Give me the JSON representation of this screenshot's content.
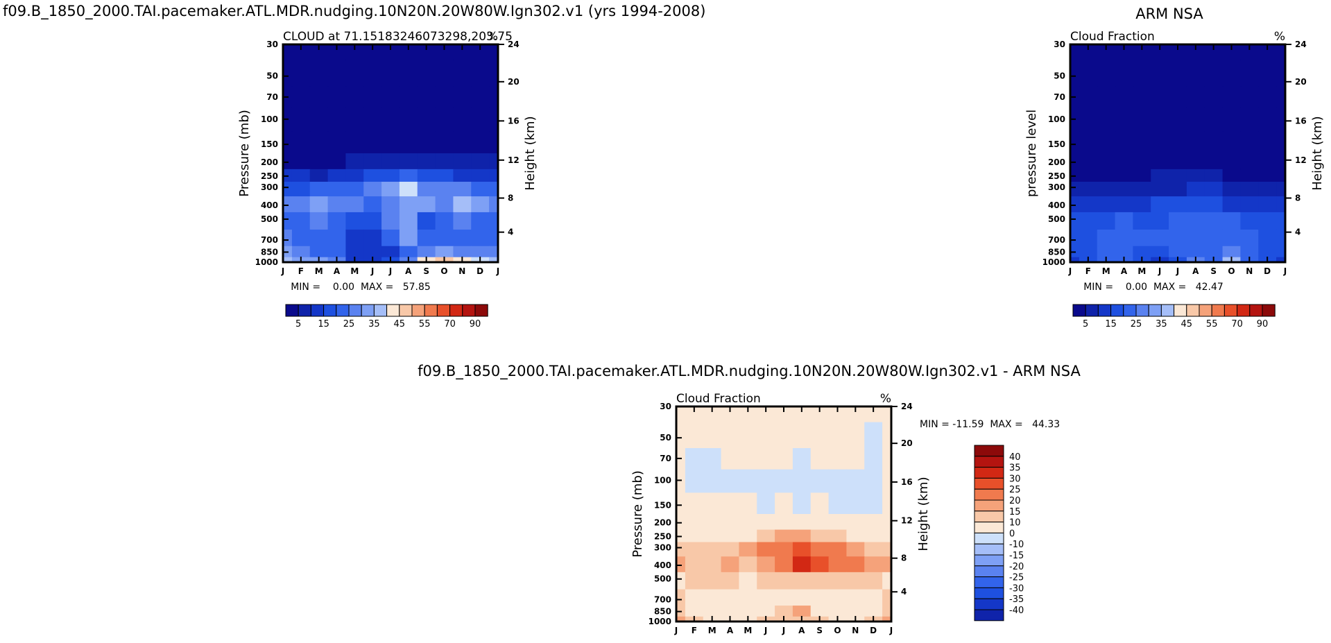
{
  "page": {
    "main_title": "f09.B_1850_2000.TAI.pacemaker.ATL.MDR.nudging.10N20N.20W80W.Ign302.v1 (yrs 1994-2008)",
    "obs_title": "ARM NSA",
    "diff_title": "f09.B_1850_2000.TAI.pacemaker.ATL.MDR.nudging.10N20N.20W80W.Ign302.v1 - ARM NSA"
  },
  "colors": {
    "scale": [
      "#0a0a8c",
      "#0f23aa",
      "#1437c8",
      "#1e50e0",
      "#3264eb",
      "#5a82f0",
      "#7ea0f5",
      "#a5bef8",
      "#cde0fa",
      "#fbe8d6",
      "#f8c8a8",
      "#f5a27a",
      "#f07a4e",
      "#e8502a",
      "#d22814",
      "#b41410",
      "#8c0a0a"
    ]
  },
  "chart_data": [
    {
      "id": "model",
      "type": "heatmap",
      "title": "CLOUD at 71.15183246073298,203.75",
      "left_label": "",
      "right_label": "%",
      "ylabel": "Pressure (mb)",
      "y2label": "Height (km)",
      "x_ticks": [
        "J",
        "F",
        "M",
        "A",
        "M",
        "J",
        "J",
        "A",
        "S",
        "O",
        "N",
        "D",
        "J"
      ],
      "y_ticks": [
        30,
        50,
        70,
        100,
        150,
        200,
        250,
        300,
        400,
        500,
        700,
        850,
        1000
      ],
      "y2_ticks": [
        24,
        20,
        16,
        12,
        8,
        4
      ],
      "min_max": "MIN =    0.00  MAX =   57.85",
      "colorbar_labels": [
        "5",
        "15",
        "25",
        "35",
        "45",
        "55",
        "70",
        "90"
      ],
      "colorbar_orientation": "horizontal",
      "months": [
        "J",
        "F",
        "M",
        "A",
        "M",
        "J",
        "J",
        "A",
        "S",
        "O",
        "N",
        "D",
        "J"
      ],
      "levels": [
        30,
        50,
        70,
        100,
        150,
        200,
        250,
        300,
        400,
        500,
        700,
        850,
        1000
      ],
      "grid_values": [
        [
          1,
          1,
          1,
          1,
          1,
          1,
          1,
          1,
          1,
          1,
          1,
          1,
          1
        ],
        [
          1,
          1,
          1,
          1,
          1,
          1,
          1,
          1,
          1,
          1,
          1,
          1,
          1
        ],
        [
          1,
          1,
          1,
          1,
          1,
          1,
          1,
          1,
          1,
          1,
          1,
          1,
          1
        ],
        [
          1,
          1,
          1,
          1,
          1,
          1,
          1,
          1,
          1,
          1,
          1,
          1,
          1
        ],
        [
          1,
          1,
          1,
          1,
          1,
          1,
          1,
          1,
          1,
          1,
          1,
          1,
          1
        ],
        [
          2,
          2,
          2,
          2,
          3,
          4,
          5,
          6,
          5,
          4,
          3,
          3,
          3
        ],
        [
          8,
          8,
          7,
          8,
          10,
          13,
          16,
          18,
          16,
          14,
          11,
          9,
          9
        ],
        [
          16,
          17,
          18,
          20,
          22,
          25,
          28,
          38,
          26,
          24,
          24,
          20,
          18
        ],
        [
          24,
          24,
          28,
          26,
          24,
          22,
          26,
          30,
          28,
          24,
          33,
          30,
          26
        ],
        [
          22,
          22,
          24,
          20,
          14,
          16,
          24,
          28,
          14,
          22,
          24,
          22,
          22
        ],
        [
          24,
          22,
          20,
          18,
          12,
          12,
          18,
          30,
          20,
          20,
          22,
          20,
          22
        ],
        [
          28,
          24,
          22,
          18,
          10,
          10,
          12,
          20,
          24,
          28,
          26,
          24,
          24
        ],
        [
          36,
          32,
          30,
          24,
          12,
          12,
          16,
          26,
          40,
          46,
          42,
          38,
          36
        ]
      ]
    },
    {
      "id": "obs",
      "type": "heatmap",
      "title": "",
      "left_label": "Cloud Fraction",
      "right_label": "%",
      "ylabel": "pressure level",
      "y2label": "Height (km)",
      "x_ticks": [
        "J",
        "F",
        "M",
        "A",
        "M",
        "J",
        "J",
        "A",
        "S",
        "O",
        "N",
        "D",
        "J"
      ],
      "y_ticks": [
        30,
        50,
        70,
        100,
        150,
        200,
        250,
        300,
        400,
        500,
        700,
        850,
        1000
      ],
      "y2_ticks": [
        24,
        20,
        16,
        12,
        8,
        4
      ],
      "min_max": "MIN =    0.00  MAX =   42.47",
      "colorbar_labels": [
        "5",
        "15",
        "25",
        "35",
        "45",
        "55",
        "70",
        "90"
      ],
      "colorbar_orientation": "horizontal",
      "months": [
        "J",
        "F",
        "M",
        "A",
        "M",
        "J",
        "J",
        "A",
        "S",
        "O",
        "N",
        "D",
        "J"
      ],
      "levels": [
        30,
        50,
        70,
        100,
        150,
        200,
        250,
        300,
        400,
        500,
        700,
        850,
        1000
      ],
      "grid_values": [
        [
          1,
          1,
          1,
          1,
          1,
          1,
          1,
          1,
          1,
          1,
          1,
          1,
          1
        ],
        [
          1,
          1,
          1,
          1,
          1,
          1,
          1,
          1,
          1,
          1,
          1,
          1,
          1
        ],
        [
          1,
          1,
          1,
          1,
          1,
          1,
          1,
          1,
          1,
          1,
          1,
          1,
          1
        ],
        [
          1,
          1,
          1,
          1,
          1,
          1,
          1,
          1,
          1,
          1,
          1,
          1,
          1
        ],
        [
          1,
          1,
          1,
          1,
          1,
          1,
          1,
          1,
          1,
          1,
          1,
          1,
          1
        ],
        [
          1,
          1,
          1,
          1,
          1,
          1,
          2,
          2,
          2,
          1,
          1,
          1,
          1
        ],
        [
          2,
          2,
          2,
          2,
          2,
          3,
          3,
          4,
          3,
          2,
          2,
          2,
          2
        ],
        [
          4,
          4,
          5,
          5,
          6,
          7,
          7,
          8,
          8,
          7,
          6,
          5,
          4
        ],
        [
          8,
          9,
          10,
          11,
          12,
          13,
          14,
          13,
          13,
          12,
          11,
          10,
          9
        ],
        [
          14,
          15,
          17,
          18,
          17,
          16,
          18,
          19,
          18,
          18,
          17,
          15,
          14
        ],
        [
          14,
          16,
          20,
          22,
          20,
          18,
          20,
          22,
          20,
          21,
          19,
          16,
          14
        ],
        [
          13,
          15,
          18,
          20,
          17,
          14,
          18,
          20,
          19,
          24,
          20,
          16,
          13
        ],
        [
          12,
          14,
          18,
          22,
          14,
          10,
          14,
          24,
          20,
          36,
          22,
          16,
          12
        ]
      ]
    },
    {
      "id": "diff",
      "type": "heatmap",
      "title": "",
      "left_label": "Cloud Fraction",
      "right_label": "%",
      "ylabel": "Pressure (mb)",
      "y2label": "Height (km)",
      "x_ticks": [
        "J",
        "F",
        "M",
        "A",
        "M",
        "J",
        "J",
        "A",
        "S",
        "O",
        "N",
        "D",
        "J"
      ],
      "y_ticks": [
        30,
        50,
        70,
        100,
        150,
        200,
        250,
        300,
        400,
        500,
        700,
        850,
        1000
      ],
      "y2_ticks": [
        24,
        20,
        16,
        12,
        8,
        4
      ],
      "min_max": "MIN = -11.59  MAX =   44.33",
      "colorbar_labels": [
        "40",
        "35",
        "30",
        "25",
        "20",
        "15",
        "10",
        "0",
        "-10",
        "-15",
        "-20",
        "-25",
        "-30",
        "-35",
        "-40"
      ],
      "colorbar_orientation": "vertical",
      "months": [
        "J",
        "F",
        "M",
        "A",
        "M",
        "J",
        "J",
        "A",
        "S",
        "O",
        "N",
        "D",
        "J"
      ],
      "levels": [
        30,
        50,
        70,
        100,
        150,
        200,
        250,
        300,
        400,
        500,
        700,
        850,
        1000
      ],
      "grid_values": [
        [
          2,
          2,
          2,
          2,
          2,
          2,
          2,
          2,
          2,
          2,
          2,
          2,
          2
        ],
        [
          2,
          2,
          2,
          2,
          2,
          2,
          2,
          2,
          2,
          2,
          2,
          -2,
          2
        ],
        [
          2,
          -3,
          -3,
          2,
          2,
          2,
          2,
          -3,
          2,
          2,
          2,
          -3,
          2
        ],
        [
          2,
          -3,
          -3,
          -3,
          -3,
          -3,
          -3,
          -3,
          -3,
          -3,
          -3,
          -3,
          2
        ],
        [
          2,
          2,
          2,
          2,
          2,
          -3,
          2,
          -3,
          2,
          -3,
          -3,
          -3,
          2
        ],
        [
          2,
          2,
          2,
          2,
          2,
          2,
          2,
          2,
          2,
          2,
          2,
          2,
          2
        ],
        [
          4,
          4,
          5,
          6,
          8,
          12,
          16,
          18,
          14,
          12,
          8,
          6,
          5
        ],
        [
          12,
          12,
          12,
          14,
          16,
          20,
          24,
          28,
          24,
          22,
          18,
          14,
          12
        ],
        [
          16,
          14,
          14,
          15,
          14,
          18,
          24,
          34,
          26,
          24,
          24,
          18,
          16
        ],
        [
          8,
          10,
          12,
          10,
          8,
          10,
          12,
          14,
          12,
          10,
          12,
          10,
          8
        ],
        [
          10,
          6,
          4,
          4,
          3,
          4,
          6,
          8,
          4,
          4,
          4,
          6,
          10
        ],
        [
          10,
          6,
          4,
          4,
          4,
          8,
          12,
          18,
          8,
          6,
          6,
          8,
          10
        ],
        [
          16,
          12,
          8,
          6,
          6,
          10,
          12,
          14,
          10,
          8,
          8,
          12,
          16
        ]
      ]
    }
  ]
}
